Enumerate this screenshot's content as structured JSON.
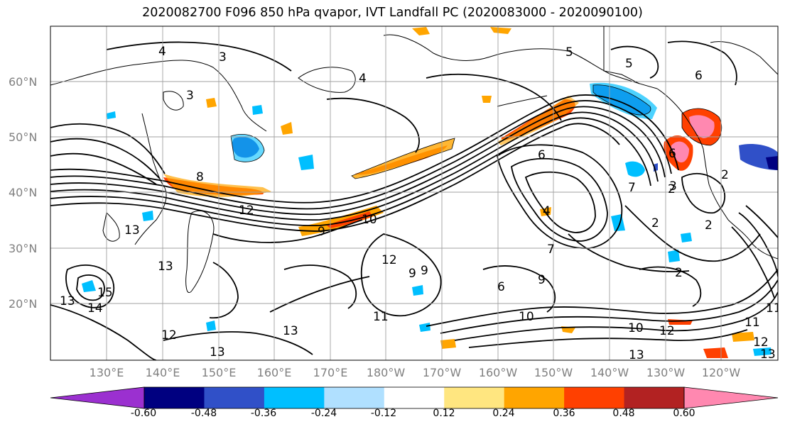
{
  "title": "2020082700 F096 850 hPa qvapor, IVT Landfall PC (2020083000 - 2020090100)",
  "lat_labels": [
    "60°N",
    "50°N",
    "40°N",
    "30°N",
    "20°N"
  ],
  "lon_labels": [
    "130°E",
    "140°E",
    "150°E",
    "160°E",
    "170°E",
    "180°W",
    "170°W",
    "160°W",
    "150°W",
    "140°W",
    "130°W",
    "120°W"
  ],
  "colorbar": {
    "ticks": [
      "-0.60",
      "-0.48",
      "-0.36",
      "-0.24",
      "-0.12",
      "0.12",
      "0.24",
      "0.36",
      "0.48",
      "0.60"
    ],
    "colors": [
      "#9b30d0",
      "#000080",
      "#3050c8",
      "#00bfff",
      "#b0e0ff",
      "#ffffff",
      "#ffe680",
      "#ffa500",
      "#ff4000",
      "#b22222",
      "#ff88b0"
    ]
  },
  "contour_labels": [
    "4",
    "3",
    "5",
    "5",
    "6",
    "4",
    "3",
    "6",
    "8",
    "12",
    "13",
    "9",
    "10",
    "12",
    "9",
    "7",
    "4",
    "2",
    "2",
    "3",
    "2",
    "7",
    "2",
    "6",
    "9",
    "9",
    "11",
    "13",
    "13",
    "14",
    "15",
    "13",
    "12",
    "13",
    "10",
    "12",
    "11",
    "12",
    "13",
    "13",
    "10",
    "11",
    "6",
    "2"
  ]
}
